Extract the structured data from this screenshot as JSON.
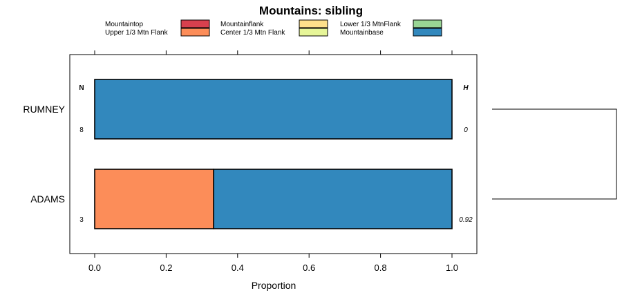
{
  "chart_data": {
    "type": "bar",
    "orientation": "horizontal",
    "stacked": true,
    "title": "Mountains: sibling",
    "xlabel": "Proportion",
    "ylabel": "",
    "xlim": [
      -0.07,
      1.07
    ],
    "xticks": [
      "0.0",
      "0.2",
      "0.4",
      "0.6",
      "0.8",
      "1.0"
    ],
    "xtick_values": [
      0,
      0.2,
      0.4,
      0.6,
      0.8,
      1.0
    ],
    "categories": [
      "RUMNEY",
      "ADAMS"
    ],
    "series": [
      {
        "name": "Mountaintop",
        "color": "#d7404e",
        "values": [
          0,
          0
        ]
      },
      {
        "name": "Upper 1/3 Mtn Flank",
        "color": "#fc8d59",
        "values": [
          0,
          0.333
        ]
      },
      {
        "name": "Mountainflank",
        "color": "#fee08b",
        "values": [
          0,
          0
        ]
      },
      {
        "name": "Center 1/3 Mtn Flank",
        "color": "#e6f598",
        "values": [
          0,
          0
        ]
      },
      {
        "name": "Lower 1/3 MtnFlank",
        "color": "#99d594",
        "values": [
          0,
          0
        ]
      },
      {
        "name": "Mountainbase",
        "color": "#3288bd",
        "values": [
          1,
          0.667
        ]
      }
    ],
    "left_header": "N",
    "right_header": "H",
    "n_values": [
      "8",
      "3"
    ],
    "h_values": [
      "0",
      "0.92"
    ],
    "legend_position": "top",
    "grid": false,
    "dendrogram": true
  }
}
